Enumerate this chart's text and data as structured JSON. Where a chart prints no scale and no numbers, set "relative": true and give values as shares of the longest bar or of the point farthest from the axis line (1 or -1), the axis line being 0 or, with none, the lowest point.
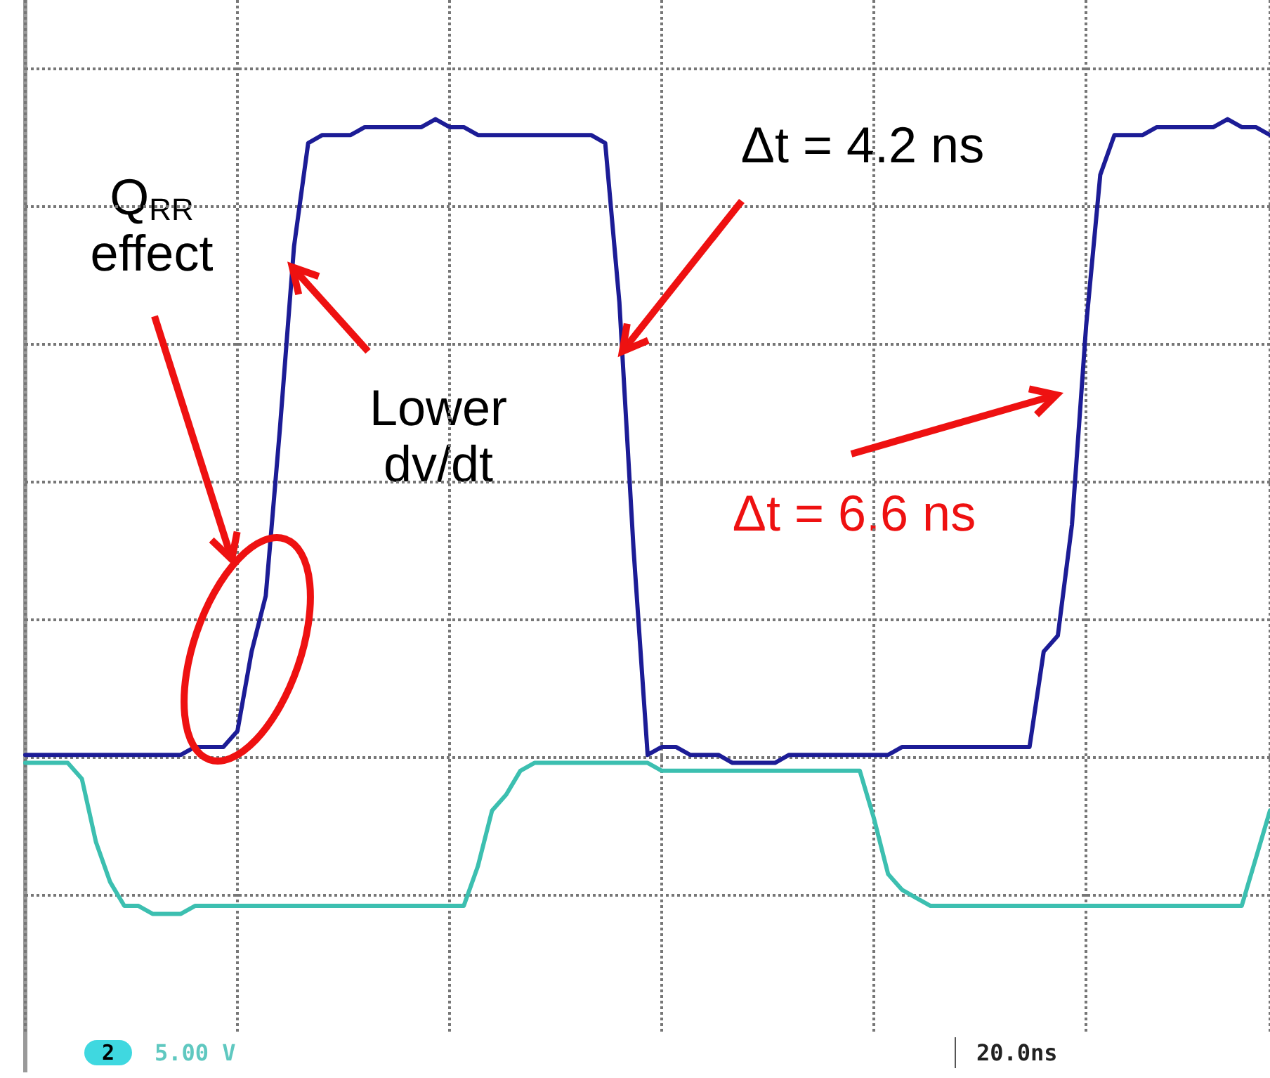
{
  "chart_data": {
    "type": "line",
    "relative": true,
    "grid": true,
    "marker": "none",
    "line_style": "solid",
    "categories": [
      null,
      null,
      null,
      null,
      null,
      null,
      null,
      null,
      null,
      null,
      null,
      null,
      null,
      null,
      null,
      null,
      null,
      null,
      null,
      null,
      null,
      null,
      null,
      null,
      null,
      null,
      null,
      null,
      null,
      null,
      null,
      null,
      null,
      null,
      null,
      null,
      null,
      null,
      null,
      null,
      null,
      null,
      null,
      null,
      null,
      null,
      null,
      null,
      null,
      null,
      null,
      null,
      null,
      null,
      null,
      null,
      null,
      null,
      null,
      null,
      null,
      null,
      null,
      null,
      null,
      null,
      null,
      null,
      null,
      null,
      null,
      null,
      null,
      null,
      null,
      null,
      null,
      null,
      null,
      null,
      null,
      null,
      null,
      null,
      null,
      null,
      null,
      null,
      null
    ],
    "series": [
      {
        "color": "#1c1c96",
        "values": [
          0.2,
          0.2,
          0.2,
          0.2,
          0.2,
          0.2,
          0.2,
          0.2,
          0.2,
          0.2,
          0.2,
          0.2,
          0.21,
          0.21,
          0.21,
          0.23,
          0.33,
          0.4,
          0.61,
          0.84,
          0.97,
          0.98,
          0.98,
          0.98,
          0.99,
          0.99,
          0.99,
          0.99,
          0.99,
          1.0,
          0.99,
          0.99,
          0.98,
          0.98,
          0.98,
          0.98,
          0.98,
          0.98,
          0.98,
          0.98,
          0.98,
          0.97,
          0.77,
          0.46,
          0.2,
          0.21,
          0.21,
          0.2,
          0.2,
          0.2,
          0.19,
          0.19,
          0.19,
          0.19,
          0.2,
          0.2,
          0.2,
          0.2,
          0.2,
          0.2,
          0.2,
          0.2,
          0.21,
          0.21,
          0.21,
          0.21,
          0.21,
          0.21,
          0.21,
          0.21,
          0.21,
          0.21,
          0.33,
          0.35,
          0.49,
          0.74,
          0.93,
          0.98,
          0.98,
          0.98,
          0.99,
          0.99,
          0.99,
          0.99,
          0.99,
          1.0,
          0.99,
          0.99,
          0.98
        ]
      },
      {
        "color": "#3cbfb0",
        "values": [
          0.19,
          0.19,
          0.19,
          0.19,
          0.17,
          0.09,
          0.04,
          0.01,
          0.01,
          0.0,
          0.0,
          0.0,
          0.01,
          0.01,
          0.01,
          0.01,
          0.01,
          0.01,
          0.01,
          0.01,
          0.01,
          0.01,
          0.01,
          0.01,
          0.01,
          0.01,
          0.01,
          0.01,
          0.01,
          0.01,
          0.01,
          0.01,
          0.06,
          0.13,
          0.15,
          0.18,
          0.19,
          0.19,
          0.19,
          0.19,
          0.19,
          0.19,
          0.19,
          0.19,
          0.19,
          0.18,
          0.18,
          0.18,
          0.18,
          0.18,
          0.18,
          0.18,
          0.18,
          0.18,
          0.18,
          0.18,
          0.18,
          0.18,
          0.18,
          0.18,
          0.12,
          0.05,
          0.03,
          0.02,
          0.01,
          0.01,
          0.01,
          0.01,
          0.01,
          0.01,
          0.01,
          0.01,
          0.01,
          0.01,
          0.01,
          0.01,
          0.01,
          0.01,
          0.01,
          0.01,
          0.01,
          0.01,
          0.01,
          0.01,
          0.01,
          0.01,
          0.01,
          0.07,
          0.13
        ]
      }
    ],
    "annotations": [
      "Q$_{RR}$ effect",
      "Lower dv/dt",
      "Δt = 4.2 ns",
      "Δt = 6.6 ns",
      "2",
      "5.00 V",
      "20.0ns"
    ]
  }
}
